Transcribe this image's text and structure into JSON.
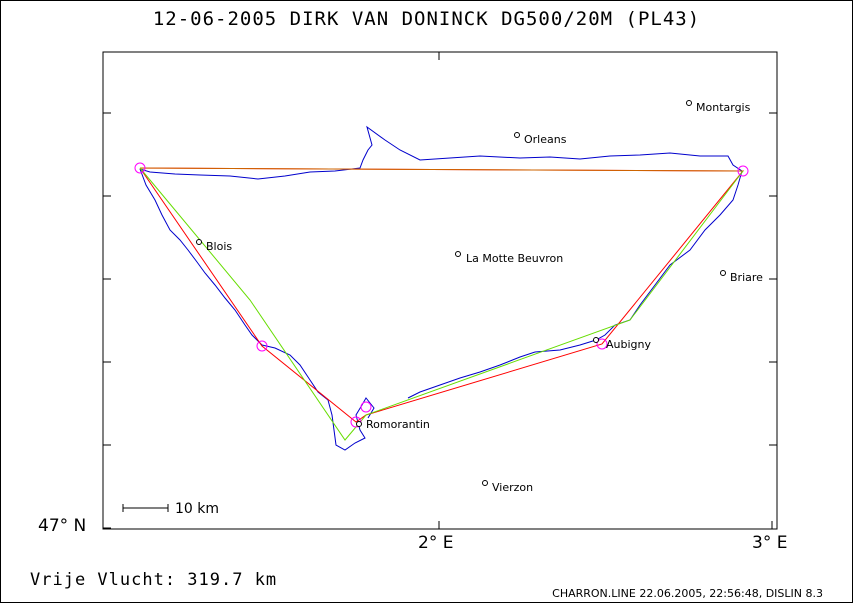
{
  "title": "12-06-2005   DIRK VAN DONINCK   DG500/20M (PL43)",
  "footer": {
    "distance_label": "Vrije Vlucht:  319.7 km",
    "info": "CHARRON.LINE 22.06.2005, 22:56:48, DISLIN 8.3"
  },
  "axes": {
    "x_ticks": [
      "2° E",
      "3° E"
    ],
    "y_ticks": [
      "47° N"
    ]
  },
  "scale_bar": "10 km",
  "places": [
    "Montargis",
    "Orleans",
    "Blois",
    "La Motte Beuvron",
    "Briare",
    "Aubigny",
    "Romorantin",
    "Vierzon"
  ],
  "colors": {
    "track": "#0000cc",
    "route": "#ff0000",
    "optimized": "#66dd00",
    "turnpoint": "#ff00ff"
  }
}
